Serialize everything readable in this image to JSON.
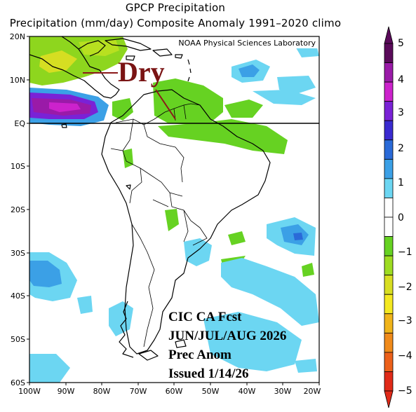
{
  "header": {
    "title": "GPCP Precipitation",
    "subtitle": "Precipitation (mm/day) Composite Anomaly 1991–2020 climo"
  },
  "map": {
    "credit": "NOAA Physical Sciences Laboratory",
    "lat_labels": [
      "20N",
      "10N",
      "EQ",
      "10S",
      "20S",
      "30S",
      "40S",
      "50S",
      "60S"
    ],
    "lon_labels": [
      "100W",
      "90W",
      "80W",
      "70W",
      "60W",
      "50W",
      "40W",
      "30W",
      "20W"
    ],
    "annotation": "Dry",
    "forecast_text": [
      "CIC CA Fcst",
      "JUN/JUL/AUG 2026",
      "Prec Anom",
      "Issued 1/14/26"
    ]
  },
  "colorbar": {
    "labels": [
      "5",
      "4",
      "3",
      "2",
      "1",
      "0",
      "−1",
      "−2",
      "−3",
      "−4",
      "−5"
    ],
    "colors": [
      "#5a0a5a",
      "#9a1aa8",
      "#cc22cc",
      "#7a22d6",
      "#3a2ad0",
      "#2a6ad8",
      "#3ba0e6",
      "#6cd6f2",
      "#ffffff",
      "#ffffff",
      "#66d222",
      "#9edc22",
      "#d8de22",
      "#f4e820",
      "#f0b41a",
      "#f08a1a",
      "#ec601a",
      "#e02a18"
    ]
  }
}
